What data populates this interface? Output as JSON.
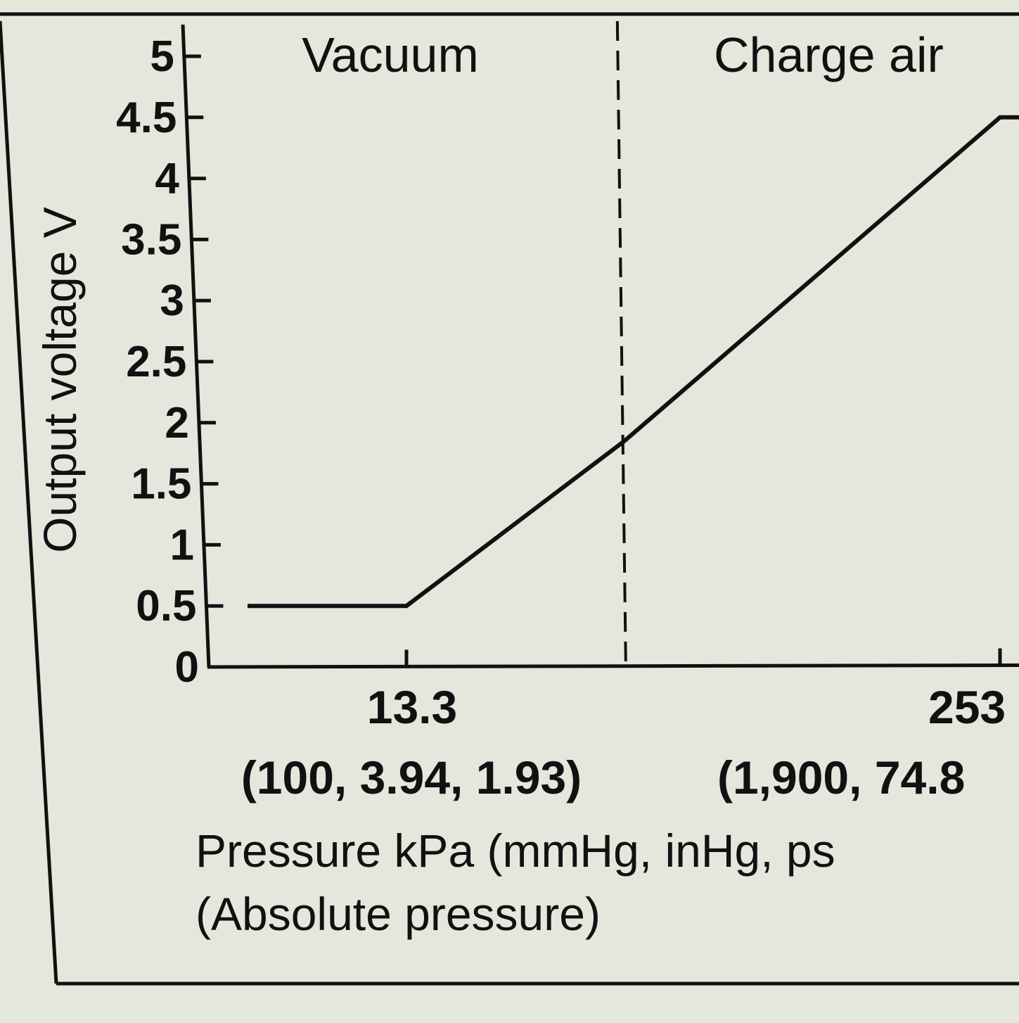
{
  "chart_data": {
    "type": "line",
    "title": "",
    "ylabel": "Output voltage V",
    "xlabel": "Pressure kPa (mmHg, inHg, ps",
    "xlabel_sub": "(Absolute pressure)",
    "ylim": [
      0,
      5
    ],
    "y_ticks": [
      "0",
      "0.5",
      "1",
      "1.5",
      "2",
      "2.5",
      "3",
      "3.5",
      "4",
      "4.5",
      "5"
    ],
    "x_ticks": [
      {
        "value": 13.3,
        "label": "13.3",
        "sub": "(100, 3.94, 1.93)"
      },
      {
        "value": 253,
        "label": "253",
        "sub": "(1,900, 74.8"
      }
    ],
    "regions": [
      {
        "label": "Vacuum"
      },
      {
        "label": "Charge air"
      }
    ],
    "boundary_pressure": 101.3,
    "series": [
      {
        "points": [
          {
            "x": 0,
            "y": 0.5
          },
          {
            "x": 13.3,
            "y": 0.5
          },
          {
            "x": 101.3,
            "y": 1.85
          },
          {
            "x": 253,
            "y": 4.5
          },
          {
            "x": 265,
            "y": 4.5
          }
        ]
      }
    ],
    "grid": false,
    "colors": {
      "line": "#111111",
      "background": "#e4e7dc"
    }
  }
}
